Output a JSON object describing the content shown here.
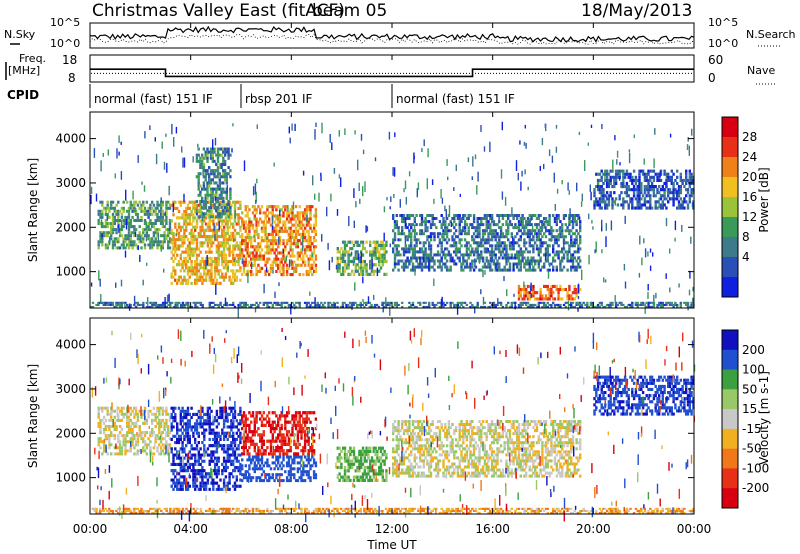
{
  "header": {
    "title": "Christmas Valley East (fitACF)",
    "beam": "beam 05",
    "date": "18/May/2013"
  },
  "sky_panel": {
    "left_label": "N.Sky",
    "right_label": "N.Search",
    "left_ticks": [
      "10^5",
      "10^0"
    ],
    "right_ticks": [
      "10^5",
      "10^0"
    ]
  },
  "freq_panel": {
    "left_label_1": "Freq.",
    "left_label_2": "[MHz]",
    "left_ticks": [
      "18",
      "8"
    ],
    "right_label": "Nave",
    "right_ticks": [
      "60",
      "0"
    ],
    "freq_mhz": [
      {
        "start_h": 0,
        "end_h": 3.0,
        "value": 14
      },
      {
        "start_h": 3.0,
        "end_h": 15.2,
        "value": 10
      },
      {
        "start_h": 15.2,
        "end_h": 24,
        "value": 14
      }
    ],
    "nave_level": 20
  },
  "cpid": {
    "label": "CPID",
    "segments": [
      {
        "start_h": 0,
        "end_h": 6.0,
        "text": "normal (fast) 151 IF"
      },
      {
        "start_h": 6.0,
        "end_h": 12.0,
        "text": "rbsp 201 IF"
      },
      {
        "start_h": 12.0,
        "end_h": 24,
        "text": "normal (fast) 151 IF"
      }
    ]
  },
  "x_axis": {
    "label": "Time UT",
    "ticks": [
      "00:00",
      "04:00",
      "08:00",
      "12:00",
      "16:00",
      "20:00",
      "00:00"
    ],
    "range_h": [
      0,
      24
    ]
  },
  "power_panel": {
    "ylabel": "Slant Range [km]",
    "yticks": [
      "1000",
      "2000",
      "3000",
      "4000"
    ],
    "colorbar_label": "Power [dB]",
    "colorbar_ticks": [
      "28",
      "24",
      "20",
      "16",
      "12",
      "8",
      "4"
    ]
  },
  "velocity_panel": {
    "ylabel": "Slant Range [km]",
    "yticks": [
      "1000",
      "2000",
      "3000",
      "4000"
    ],
    "colorbar_label": "Velocity [m s-1]",
    "colorbar_ticks": [
      "200",
      "100",
      "50",
      "15",
      "-15",
      "-50",
      "-100",
      "-200"
    ]
  },
  "chart_data": [
    {
      "type": "heatmap",
      "title": "Power",
      "xlabel": "Time UT",
      "ylabel": "Slant Range [km]",
      "xlim": [
        0,
        24
      ],
      "ylim": [
        180,
        4600
      ],
      "colorbar": {
        "label": "Power [dB]",
        "range": [
          0,
          32
        ],
        "ticks": [
          4,
          8,
          12,
          16,
          20,
          24,
          28
        ]
      },
      "features": [
        {
          "t0": 0.3,
          "t1": 3.2,
          "r0": 1500,
          "r1": 2600,
          "value": 12
        },
        {
          "t0": 3.2,
          "t1": 6.0,
          "r0": 700,
          "r1": 2600,
          "value": 20
        },
        {
          "t0": 4.2,
          "t1": 5.6,
          "r0": 2200,
          "r1": 3800,
          "value": 10
        },
        {
          "t0": 6.0,
          "t1": 9.0,
          "r0": 900,
          "r1": 2500,
          "value": 22
        },
        {
          "t0": 9.8,
          "t1": 11.8,
          "r0": 900,
          "r1": 1700,
          "value": 14
        },
        {
          "t0": 12.0,
          "t1": 19.5,
          "r0": 1000,
          "r1": 2300,
          "value": 8
        },
        {
          "t0": 17.0,
          "t1": 19.5,
          "r0": 350,
          "r1": 700,
          "value": 24
        },
        {
          "t0": 20.0,
          "t1": 24.0,
          "r0": 2400,
          "r1": 3300,
          "value": 6
        },
        {
          "t0": 0.0,
          "t1": 24.0,
          "r0": 180,
          "r1": 320,
          "value": 8
        }
      ]
    },
    {
      "type": "heatmap",
      "title": "Velocity",
      "xlabel": "Time UT",
      "ylabel": "Slant Range [km]",
      "xlim": [
        0,
        24
      ],
      "ylim": [
        180,
        4600
      ],
      "colorbar": {
        "label": "Velocity [m s-1]",
        "range": [
          -250,
          250
        ],
        "ticks": [
          200,
          100,
          50,
          15,
          -15,
          -50,
          -100,
          -200
        ]
      },
      "features": [
        {
          "t0": 0.3,
          "t1": 3.2,
          "r0": 1500,
          "r1": 2600,
          "value": 0
        },
        {
          "t0": 3.2,
          "t1": 6.0,
          "r0": 700,
          "r1": 2600,
          "value": 200
        },
        {
          "t0": 6.0,
          "t1": 9.0,
          "r0": 1500,
          "r1": 2500,
          "value": -200
        },
        {
          "t0": 6.0,
          "t1": 9.0,
          "r0": 900,
          "r1": 1500,
          "value": 150
        },
        {
          "t0": 9.8,
          "t1": 11.8,
          "r0": 900,
          "r1": 1700,
          "value": 60
        },
        {
          "t0": 12.0,
          "t1": 19.5,
          "r0": 1000,
          "r1": 2300,
          "value": 0
        },
        {
          "t0": 20.0,
          "t1": 24.0,
          "r0": 2400,
          "r1": 3300,
          "value": 180
        },
        {
          "t0": 0.0,
          "t1": 24.0,
          "r0": 180,
          "r1": 320,
          "value": -40
        }
      ]
    }
  ]
}
